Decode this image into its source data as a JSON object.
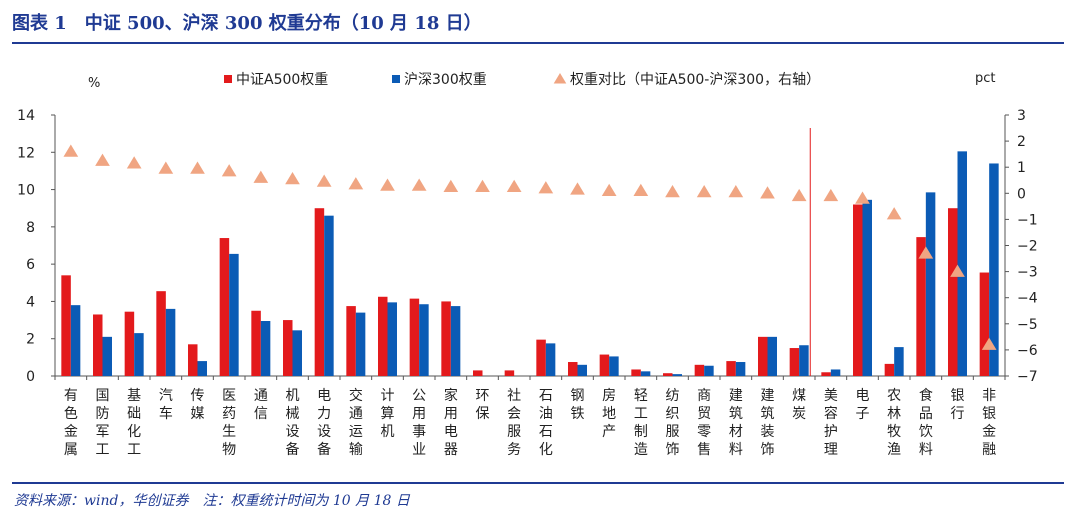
{
  "figure_title": "图表 1　中证 500、沪深 300 权重分布（10 月 18 日）",
  "source_note": "资料来源：wind，华创证券　注：权重统计时间为 10 月 18 日",
  "colors": {
    "csi500": "#e31a1c",
    "hs300": "#0b5bb5",
    "ratio": "#f0a582",
    "title": "#1f3a93"
  },
  "chart_data": {
    "type": "bar",
    "left_unit": "%",
    "right_unit": "pct",
    "ylim_left": [
      0,
      14
    ],
    "yticks_left": [
      0,
      2,
      4,
      6,
      8,
      10,
      12,
      14
    ],
    "ylim_right": [
      -7,
      3
    ],
    "yticks_right": [
      3,
      2,
      1,
      0,
      -1,
      -2,
      -3,
      -4,
      -5,
      -6,
      -7
    ],
    "yticks_right_labels": [
      "3",
      "2",
      "1",
      "0",
      "−1",
      "−2",
      "−3",
      "−4",
      "−5",
      "−6",
      "−7"
    ],
    "legend_position": "top",
    "divider_after_index": 23,
    "categories": [
      "有色金属",
      "国防军工",
      "基础化工",
      "汽车",
      "传媒",
      "医药生物",
      "通信",
      "机械设备",
      "电力设备",
      "交通运输",
      "计算机",
      "公用事业",
      "家用电器",
      "环保",
      "社会服务",
      "石油石化",
      "钢铁",
      "房地产",
      "轻工制造",
      "纺织服饰",
      "商贸零售",
      "建筑材料",
      "建筑装饰",
      "煤炭",
      "美容护理",
      "电子",
      "农林牧渔",
      "食品饮料",
      "银行",
      "非银金融"
    ],
    "series": [
      {
        "name": "中证A500权重",
        "type": "bar",
        "axis": "left",
        "values": [
          5.4,
          3.3,
          3.45,
          4.55,
          1.7,
          7.4,
          3.5,
          3.0,
          9.0,
          3.75,
          4.25,
          4.15,
          4.0,
          0.3,
          0.3,
          1.95,
          0.75,
          1.15,
          0.35,
          0.15,
          0.6,
          0.8,
          2.1,
          1.5,
          0.2,
          9.2,
          0.65,
          7.45,
          9.0,
          5.55
        ]
      },
      {
        "name": "沪深300权重",
        "type": "bar",
        "axis": "left",
        "values": [
          3.8,
          2.1,
          2.3,
          3.6,
          0.8,
          6.55,
          2.95,
          2.45,
          8.6,
          3.4,
          3.95,
          3.85,
          3.75,
          0.0,
          0.0,
          1.75,
          0.6,
          1.05,
          0.25,
          0.1,
          0.55,
          0.75,
          2.1,
          1.65,
          0.35,
          9.45,
          1.55,
          9.85,
          12.05,
          11.4
        ]
      },
      {
        "name": "权重对比（中证A500-沪深300，右轴）",
        "type": "triangle",
        "axis": "right",
        "values": [
          1.6,
          1.25,
          1.15,
          0.95,
          0.95,
          0.85,
          0.6,
          0.55,
          0.45,
          0.35,
          0.3,
          0.3,
          0.25,
          0.25,
          0.25,
          0.2,
          0.15,
          0.1,
          0.1,
          0.05,
          0.05,
          0.05,
          0.0,
          -0.1,
          -0.1,
          -0.2,
          -0.8,
          -2.3,
          -3.0,
          -5.8
        ]
      }
    ]
  }
}
